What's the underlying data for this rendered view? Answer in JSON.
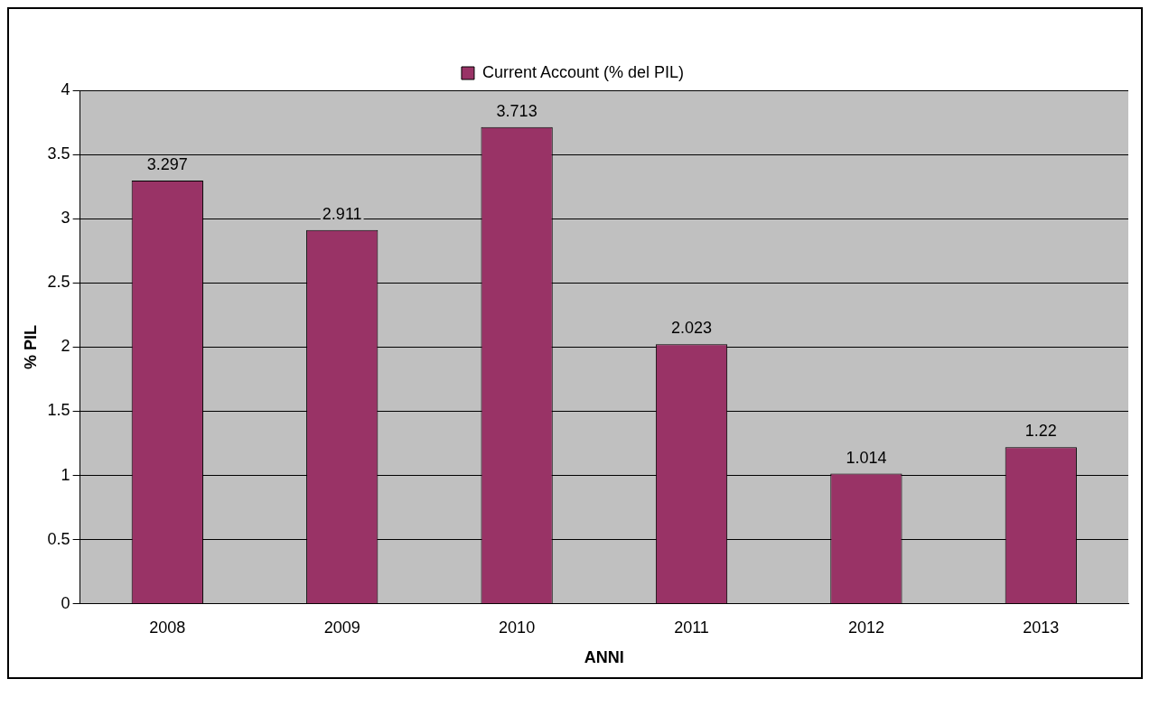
{
  "chart_data": {
    "type": "bar",
    "xlabel": "ANNI",
    "ylabel": "% PIL",
    "categories": [
      "2008",
      "2009",
      "2010",
      "2011",
      "2012",
      "2013"
    ],
    "series": [
      {
        "name": "Current Account (% del PIL)",
        "color": "#993366",
        "values": [
          3.297,
          2.911,
          3.713,
          2.023,
          1.014,
          1.22
        ]
      }
    ],
    "ylim": [
      0,
      4
    ],
    "yticks": [
      0,
      0.5,
      1,
      1.5,
      2,
      2.5,
      3,
      3.5,
      4
    ],
    "grid": "y",
    "legend": "top",
    "data_labels": true
  }
}
